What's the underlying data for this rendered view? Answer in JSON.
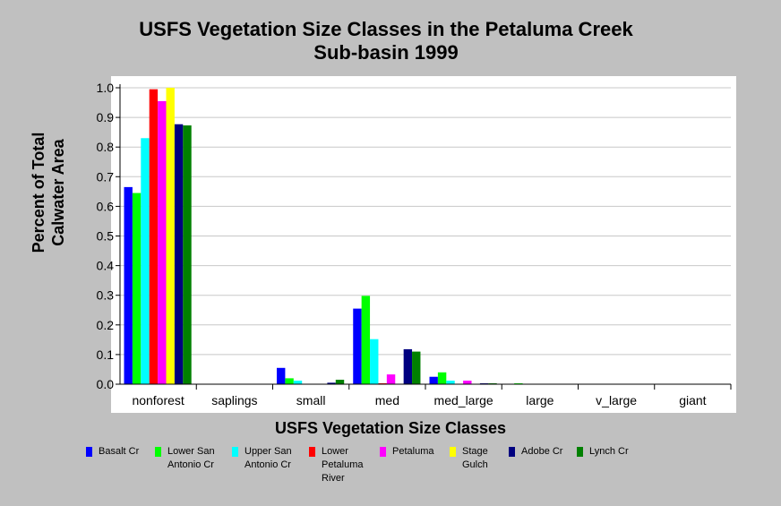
{
  "chart_data": {
    "type": "bar",
    "title": "USFS Vegetation Size Classes in the Petaluma Creek\nSub-basin 1999",
    "xlabel": "USFS Vegetation Size Classes",
    "ylabel": "Percent of Total\nCalwater Area",
    "ylim": [
      0,
      1.0
    ],
    "yticks": [
      "0.0",
      "0.1",
      "0.2",
      "0.3",
      "0.4",
      "0.5",
      "0.6",
      "0.7",
      "0.8",
      "0.9",
      "1.0"
    ],
    "grid": true,
    "legend_position": "bottom",
    "categories": [
      "nonforest",
      "saplings",
      "small",
      "med",
      "med_large",
      "large",
      "v_large",
      "giant"
    ],
    "series": [
      {
        "name": "Basalt Cr",
        "legend_label": "Basalt Cr",
        "color": "#0000ff",
        "values": [
          0.665,
          0,
          0.055,
          0.255,
          0.025,
          0,
          0,
          0
        ]
      },
      {
        "name": "Lower San Antonio Cr",
        "legend_label": "Lower San\nAntonio Cr",
        "color": "#00ff00",
        "values": [
          0.645,
          0,
          0.02,
          0.298,
          0.04,
          0.003,
          0,
          0
        ]
      },
      {
        "name": "Upper San Antonio Cr",
        "legend_label": "Upper San\nAntonio Cr",
        "color": "#00ffff",
        "values": [
          0.83,
          0,
          0.012,
          0.152,
          0.012,
          0,
          0,
          0
        ]
      },
      {
        "name": "Lower Petaluma River",
        "legend_label": "Lower\nPetaluma\nRiver",
        "color": "#ff0000",
        "values": [
          0.995,
          0,
          0,
          0.003,
          0,
          0,
          0,
          0
        ]
      },
      {
        "name": "Petaluma",
        "legend_label": "Petaluma",
        "color": "#ff00ff",
        "values": [
          0.955,
          0,
          0,
          0.033,
          0.012,
          0,
          0,
          0
        ]
      },
      {
        "name": "Stage Gulch",
        "legend_label": "Stage\nGulch",
        "color": "#ffff00",
        "values": [
          1.0,
          0,
          0,
          0,
          0,
          0,
          0,
          0
        ]
      },
      {
        "name": "Adobe Cr",
        "legend_label": "Adobe Cr",
        "color": "#000080",
        "values": [
          0.877,
          0,
          0.005,
          0.118,
          0.003,
          0,
          0,
          0
        ]
      },
      {
        "name": "Lynch Cr",
        "legend_label": "Lynch Cr",
        "color": "#008000",
        "values": [
          0.873,
          0,
          0.015,
          0.11,
          0.003,
          0,
          0,
          0
        ]
      }
    ]
  }
}
